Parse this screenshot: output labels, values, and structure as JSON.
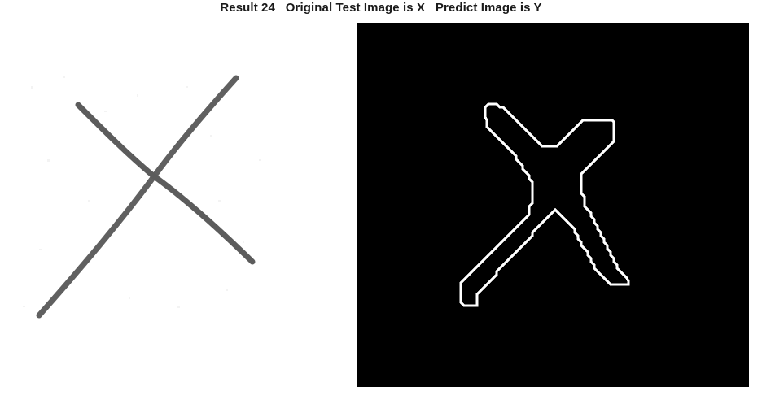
{
  "figure": {
    "title": "Result 24   Original Test Image is X   Predict Image is Y"
  },
  "panels": [
    {
      "id": "original",
      "content": "handwritten X glyph (grayscale)",
      "background": "#ffffff",
      "stroke": "#5a5a5a"
    },
    {
      "id": "prediction",
      "content": "edge outline of X glyph",
      "background": "#000000",
      "stroke": "#ffffff"
    }
  ]
}
